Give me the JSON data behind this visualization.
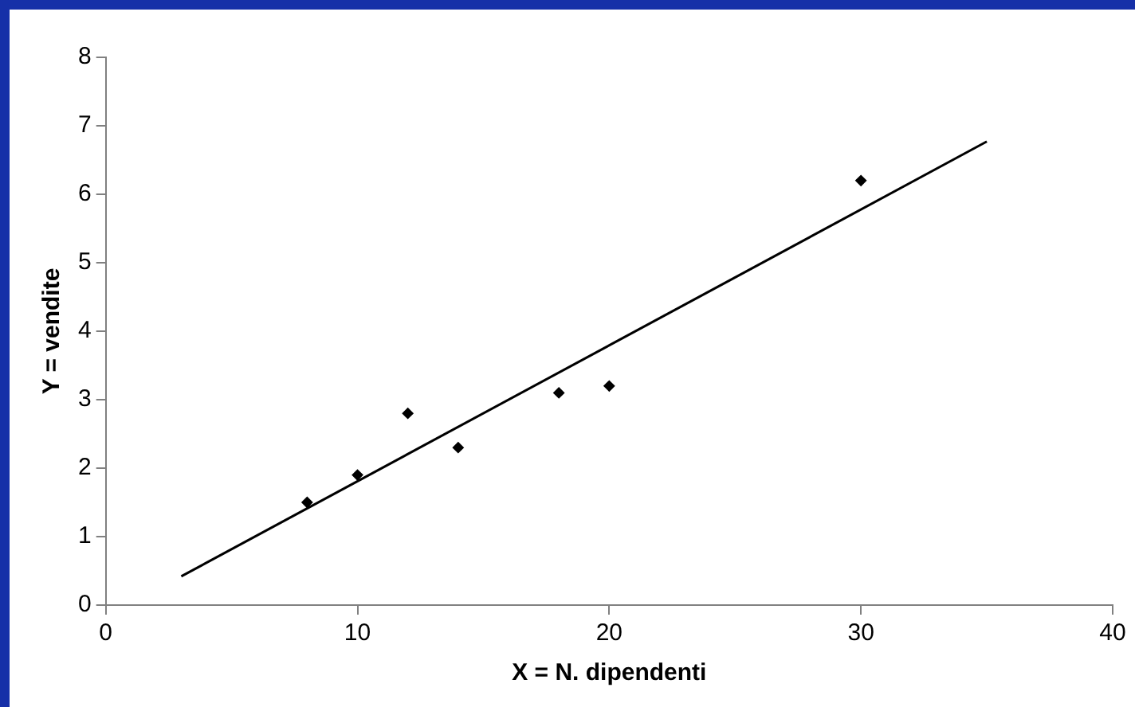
{
  "chart_data": {
    "type": "scatter",
    "xlabel": "X = N. dipendenti",
    "ylabel": "Y = vendite",
    "xlim": [
      0,
      40
    ],
    "xticks": [
      0,
      10,
      20,
      30,
      40
    ],
    "ylim": [
      0,
      8
    ],
    "yticks": [
      0,
      1,
      2,
      3,
      4,
      5,
      6,
      7,
      8
    ],
    "grid": false,
    "legend": false,
    "marker": "diamond",
    "series": [
      {
        "color": "#000000",
        "x": [
          8,
          10,
          12,
          14,
          18,
          20,
          30
        ],
        "values": [
          1.5,
          1.9,
          2.8,
          2.3,
          3.1,
          3.2,
          6.2
        ]
      },
      {
        "type": "line",
        "color": "#000000",
        "marker": "none",
        "line_style": "solid",
        "x": [
          3,
          35
        ],
        "values": [
          0.42,
          6.77
        ]
      }
    ]
  }
}
